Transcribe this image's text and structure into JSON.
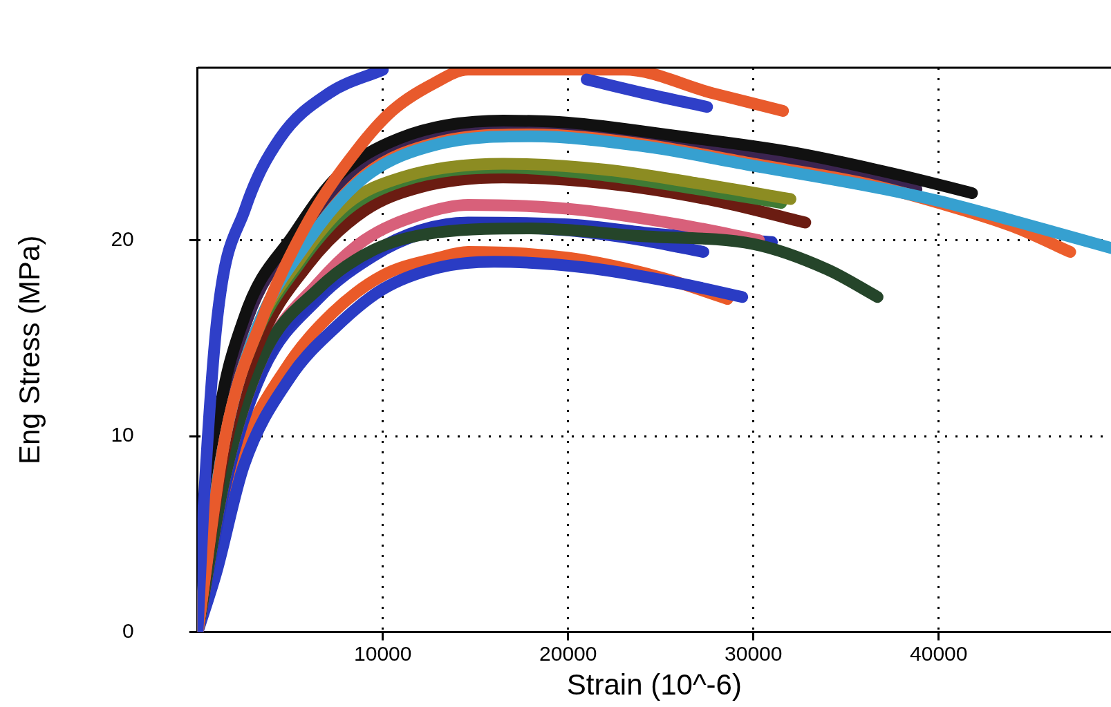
{
  "chart_data": {
    "type": "line",
    "xlabel": "Strain (10^-6)",
    "ylabel": "Eng Stress (MPa)",
    "xlim": [
      0,
      49300
    ],
    "ylim": [
      0,
      28.8
    ],
    "xticks": [
      10000,
      20000,
      30000,
      40000
    ],
    "yticks": [
      0,
      10,
      20
    ],
    "grid": true,
    "legend": false,
    "marker": "none",
    "line_style": "solid",
    "series": [
      {
        "color": "#2f3fc8",
        "x": [
          0,
          300,
          1060,
          2570,
          4450,
          7090,
          10000,
          11500,
          19000,
          21000,
          24100,
          27500
        ],
        "values": [
          0,
          6,
          16,
          21.6,
          25.2,
          27.5,
          28.7,
          null,
          null,
          28.2,
          27.5,
          26.8
        ]
      },
      {
        "color": "#e85a2c",
        "x": [
          0,
          1500,
          3500,
          6000,
          8600,
          10500,
          12750,
          14600,
          23000,
          27800,
          31600
        ],
        "values": [
          0,
          10,
          16,
          21,
          24.6,
          26.6,
          28,
          28.7,
          28.7,
          27.5,
          26.6
        ]
      },
      {
        "color": "#36a0d0",
        "x": [
          0,
          1300,
          3000,
          6000,
          9000,
          13000,
          18000,
          24000,
          30000,
          36000,
          40000,
          44000,
          49300
        ],
        "values": [
          0,
          9,
          15,
          20,
          23.2,
          24.9,
          25.3,
          24.8,
          23.8,
          22.8,
          22,
          21,
          19.6
        ]
      },
      {
        "color": "#ec5e2c",
        "x": [
          0,
          1300,
          3000,
          6000,
          9000,
          13000,
          18000,
          24000,
          30000,
          36000,
          40000,
          44000,
          47100
        ],
        "values": [
          0,
          9,
          15,
          20,
          23.3,
          25,
          25.4,
          24.9,
          23.9,
          22.9,
          21.9,
          20.7,
          19.4
        ]
      },
      {
        "color": "#111111",
        "x": [
          0,
          1000,
          2500,
          5200,
          7500,
          10900,
          16500,
          20000,
          26000,
          32000,
          38000,
          41800
        ],
        "values": [
          0,
          10,
          16,
          20.3,
          23.2,
          25.2,
          26.1,
          26.0,
          25.3,
          24.5,
          23.3,
          22.4
        ]
      },
      {
        "color": "#3b2450",
        "x": [
          0,
          1100,
          2700,
          5500,
          8000,
          11000,
          16000,
          20000,
          26000,
          32000,
          38800
        ],
        "values": [
          0,
          10,
          16,
          20.3,
          23,
          24.9,
          25.8,
          25.7,
          25.0,
          24.1,
          22.6
        ]
      },
      {
        "color": "#8c8c22",
        "x": [
          0,
          1200,
          3000,
          5500,
          8000,
          11000,
          16500,
          22000,
          27000,
          32000
        ],
        "values": [
          0,
          9,
          15,
          19,
          21.8,
          23.2,
          23.9,
          23.6,
          22.9,
          22.1
        ]
      },
      {
        "color": "#3f7a34",
        "x": [
          0,
          1200,
          3000,
          5500,
          8000,
          11000,
          16500,
          22000,
          27000,
          31500
        ],
        "values": [
          0,
          9,
          14.8,
          18.8,
          21.5,
          23,
          23.7,
          23.3,
          22.6,
          21.9
        ]
      },
      {
        "color": "#6b1c12",
        "x": [
          0,
          1300,
          3200,
          6000,
          9000,
          12000,
          16500,
          22000,
          28000,
          32800
        ],
        "values": [
          0,
          8.5,
          14.5,
          18.8,
          21.5,
          22.7,
          23.2,
          22.9,
          22.0,
          20.9
        ]
      },
      {
        "color": "#25452a",
        "x": [
          0,
          1500,
          3500,
          6500,
          9500,
          13000,
          18000,
          24000,
          30000,
          34000,
          36700
        ],
        "values": [
          0,
          8,
          14,
          17.5,
          19.5,
          20.4,
          20.6,
          20.2,
          19.8,
          18.5,
          17.1
        ]
      },
      {
        "color": "#d8607a",
        "x": [
          0,
          1500,
          3500,
          6500,
          9000,
          12000,
          14600,
          20000,
          26000,
          30300
        ],
        "values": [
          0,
          8,
          14,
          17.8,
          20,
          21.3,
          21.8,
          21.6,
          20.8,
          20
        ]
      },
      {
        "color": "#2434b8",
        "x": [
          0,
          1500,
          3500,
          6500,
          9500,
          12000,
          14600,
          20000,
          25000,
          31000
        ],
        "values": [
          0,
          7.5,
          13.5,
          17.2,
          19.4,
          20.5,
          20.9,
          20.8,
          20.3,
          19.9
        ]
      },
      {
        "color": "#2838c0",
        "x": [
          0,
          1500,
          3500,
          6500,
          9500,
          12000,
          14600,
          20000,
          24000,
          27300
        ],
        "values": [
          0,
          7.5,
          13.3,
          17,
          19.2,
          20.3,
          20.7,
          20.5,
          20.0,
          19.4
        ]
      },
      {
        "color": "#2a3cc4",
        "x": [
          0,
          1000,
          2500,
          5000,
          7500,
          10000,
          13000,
          16000,
          21000,
          26000,
          29400
        ],
        "values": [
          0,
          3,
          8.5,
          13,
          15.6,
          17.5,
          18.6,
          18.9,
          18.6,
          17.8,
          17.1
        ]
      },
      {
        "color": "#ea5a28",
        "x": [
          0,
          800,
          2300,
          4800,
          7300,
          10000,
          13000,
          14600,
          20000,
          25000,
          28600
        ],
        "values": [
          0,
          3.5,
          9,
          13.5,
          16.3,
          18.2,
          19.1,
          19.4,
          19.1,
          18.1,
          17
        ]
      }
    ]
  }
}
